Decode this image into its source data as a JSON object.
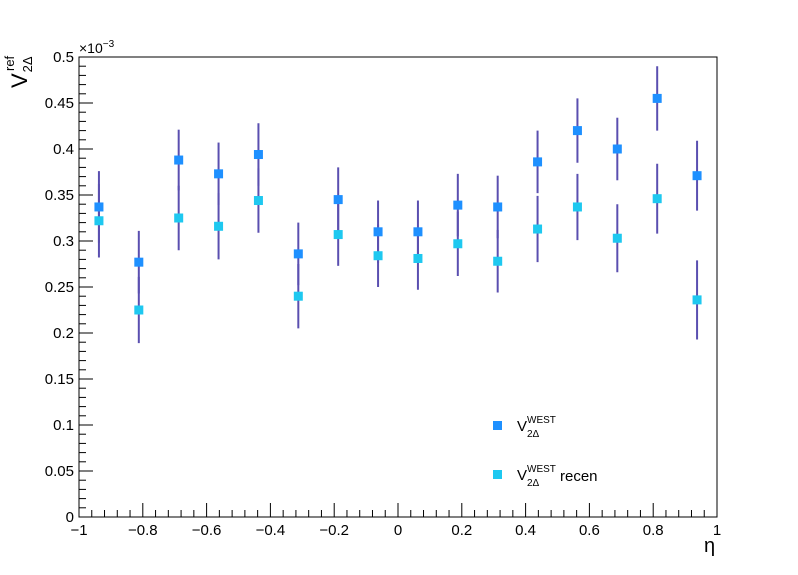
{
  "chart_data": {
    "type": "scatter",
    "x_label_main": "η",
    "y_label": {
      "main": "V",
      "sup": "ref",
      "sub": "2Δ"
    },
    "y_multiplier": {
      "base": "×10",
      "exp": "−3"
    },
    "xlim": [
      -1,
      1
    ],
    "ylim": [
      0,
      0.5
    ],
    "x_ticks": [
      {
        "v": -1,
        "label": "−1"
      },
      {
        "v": -0.8,
        "label": "−0.8"
      },
      {
        "v": -0.6,
        "label": "−0.6"
      },
      {
        "v": -0.4,
        "label": "−0.4"
      },
      {
        "v": -0.2,
        "label": "−0.2"
      },
      {
        "v": 0,
        "label": "0"
      },
      {
        "v": 0.2,
        "label": "0.2"
      },
      {
        "v": 0.4,
        "label": "0.4"
      },
      {
        "v": 0.6,
        "label": "0.6"
      },
      {
        "v": 0.8,
        "label": "0.8"
      },
      {
        "v": 1,
        "label": "1"
      }
    ],
    "y_ticks": [
      {
        "v": 0,
        "label": "0"
      },
      {
        "v": 0.05,
        "label": "0.05"
      },
      {
        "v": 0.1,
        "label": "0.1"
      },
      {
        "v": 0.15,
        "label": "0.15"
      },
      {
        "v": 0.2,
        "label": "0.2"
      },
      {
        "v": 0.25,
        "label": "0.25"
      },
      {
        "v": 0.3,
        "label": "0.3"
      },
      {
        "v": 0.35,
        "label": "0.35"
      },
      {
        "v": 0.4,
        "label": "0.4"
      },
      {
        "v": 0.45,
        "label": "0.45"
      },
      {
        "v": 0.5,
        "label": "0.5"
      }
    ],
    "series": [
      {
        "legend": {
          "main": "V",
          "sup": "WEST",
          "sub": "2Δ",
          "suffix": ""
        },
        "color": "#1e90ff",
        "error_color": "#5a4fb0",
        "points": [
          {
            "x": -0.9375,
            "y": 0.337,
            "err": 0.039
          },
          {
            "x": -0.8125,
            "y": 0.277,
            "err": 0.034
          },
          {
            "x": -0.6875,
            "y": 0.388,
            "err": 0.033
          },
          {
            "x": -0.5625,
            "y": 0.373,
            "err": 0.034
          },
          {
            "x": -0.4375,
            "y": 0.394,
            "err": 0.034
          },
          {
            "x": -0.3125,
            "y": 0.286,
            "err": 0.034
          },
          {
            "x": -0.1875,
            "y": 0.345,
            "err": 0.035
          },
          {
            "x": -0.0625,
            "y": 0.31,
            "err": 0.034
          },
          {
            "x": 0.0625,
            "y": 0.31,
            "err": 0.034
          },
          {
            "x": 0.1875,
            "y": 0.339,
            "err": 0.034
          },
          {
            "x": 0.3125,
            "y": 0.337,
            "err": 0.034
          },
          {
            "x": 0.4375,
            "y": 0.386,
            "err": 0.034
          },
          {
            "x": 0.5625,
            "y": 0.42,
            "err": 0.035
          },
          {
            "x": 0.6875,
            "y": 0.4,
            "err": 0.034
          },
          {
            "x": 0.8125,
            "y": 0.455,
            "err": 0.035
          },
          {
            "x": 0.9375,
            "y": 0.371,
            "err": 0.038
          }
        ]
      },
      {
        "legend": {
          "main": "V",
          "sup": "WEST",
          "sub": "2Δ",
          "suffix": "recen"
        },
        "color": "#1ec8f0",
        "error_color": "#5a4fb0",
        "points": [
          {
            "x": -0.9375,
            "y": 0.322,
            "err": 0.04
          },
          {
            "x": -0.8125,
            "y": 0.225,
            "err": 0.036
          },
          {
            "x": -0.6875,
            "y": 0.325,
            "err": 0.035
          },
          {
            "x": -0.5625,
            "y": 0.316,
            "err": 0.036
          },
          {
            "x": -0.4375,
            "y": 0.344,
            "err": 0.035
          },
          {
            "x": -0.3125,
            "y": 0.24,
            "err": 0.035
          },
          {
            "x": -0.1875,
            "y": 0.307,
            "err": 0.034
          },
          {
            "x": -0.0625,
            "y": 0.284,
            "err": 0.034
          },
          {
            "x": 0.0625,
            "y": 0.281,
            "err": 0.034
          },
          {
            "x": 0.1875,
            "y": 0.297,
            "err": 0.035
          },
          {
            "x": 0.3125,
            "y": 0.278,
            "err": 0.034
          },
          {
            "x": 0.4375,
            "y": 0.313,
            "err": 0.036
          },
          {
            "x": 0.5625,
            "y": 0.337,
            "err": 0.036
          },
          {
            "x": 0.6875,
            "y": 0.303,
            "err": 0.037
          },
          {
            "x": 0.8125,
            "y": 0.346,
            "err": 0.038
          },
          {
            "x": 0.9375,
            "y": 0.236,
            "err": 0.043
          }
        ]
      }
    ]
  }
}
